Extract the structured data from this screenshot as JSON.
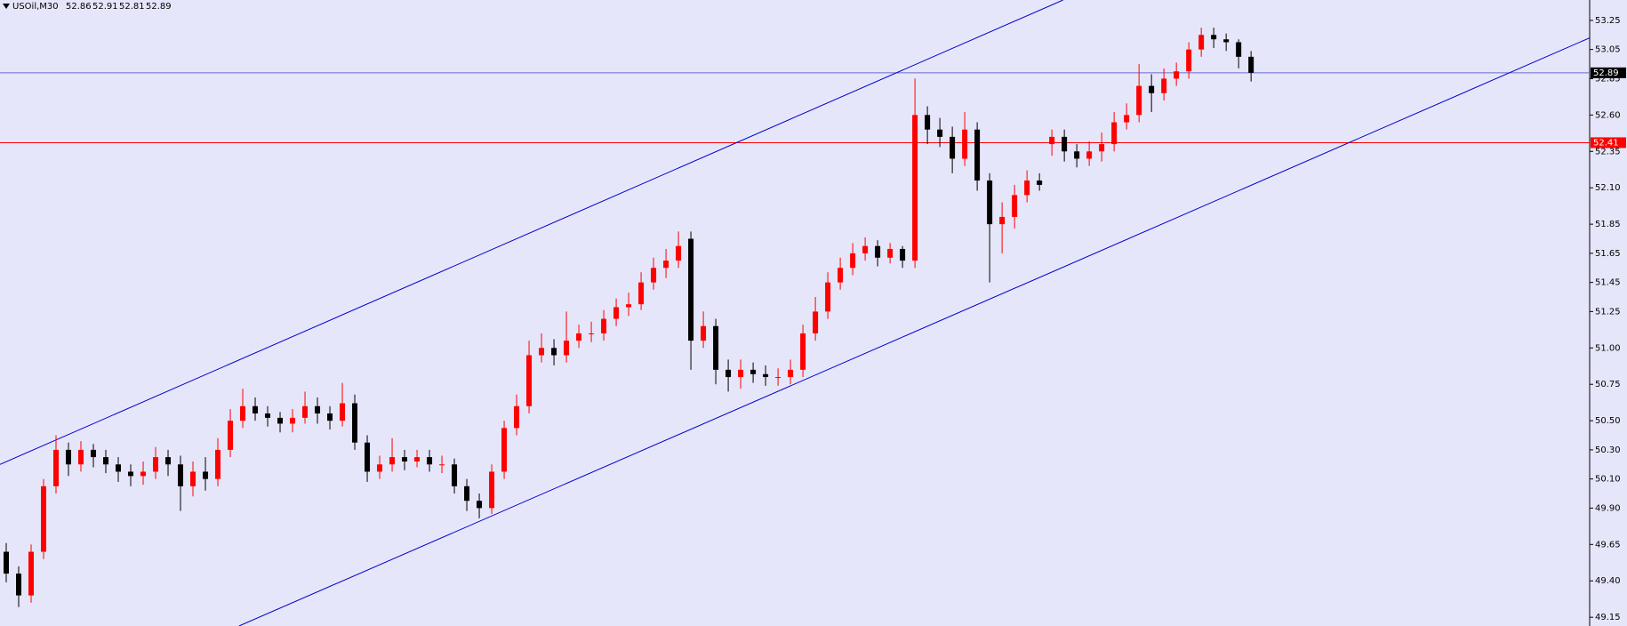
{
  "chart_data": {
    "type": "candlestick",
    "symbol": "USOil,M30",
    "ohlc": [
      52.86,
      52.91,
      52.81,
      52.89
    ],
    "ylim": [
      49.09,
      53.39
    ],
    "yticks": [
      53.25,
      53.05,
      52.85,
      {
        "value": 52.6,
        "label": "52.60"
      },
      52.35,
      {
        "value": 52.1,
        "label": "52.10"
      },
      51.85,
      51.65,
      51.45,
      51.25,
      {
        "value": 51.0,
        "label": "51.00"
      },
      50.75,
      {
        "value": 50.5,
        "label": "50.50"
      },
      {
        "value": 50.3,
        "label": "50.30"
      },
      {
        "value": 50.1,
        "label": "50.10"
      },
      {
        "value": 49.9,
        "label": "49.90"
      },
      49.65,
      {
        "value": 49.4,
        "label": "49.40"
      },
      49.15
    ],
    "xlim": [
      -0.5,
      127.2
    ],
    "up_color": "#ff0000",
    "down_color": "#000000",
    "open": [
      49.6,
      49.45,
      49.3,
      49.6,
      50.05,
      50.3,
      50.2,
      50.3,
      50.25,
      50.2,
      50.15,
      50.12,
      50.15,
      50.25,
      50.2,
      50.05,
      50.15,
      50.1,
      50.3,
      50.5,
      50.6,
      50.55,
      50.52,
      50.48,
      50.52,
      50.6,
      50.55,
      50.5,
      50.62,
      50.35,
      50.15,
      50.2,
      50.25,
      50.22,
      50.25,
      50.2,
      50.2,
      50.05,
      49.95,
      49.9,
      50.15,
      50.45,
      50.6,
      50.95,
      51.0,
      50.95,
      51.05,
      51.1,
      51.1,
      51.2,
      51.28,
      51.3,
      51.45,
      51.55,
      51.6,
      51.75,
      51.05,
      51.15,
      50.85,
      50.8,
      50.85,
      50.82,
      50.8,
      50.8,
      50.85,
      51.1,
      51.25,
      51.45,
      51.55,
      51.65,
      51.7,
      51.62,
      51.68,
      51.6,
      52.6,
      52.5,
      52.45,
      52.3,
      52.5,
      52.15,
      51.85,
      51.9,
      52.05,
      52.15,
      52.4,
      52.45,
      52.35,
      52.3,
      52.35,
      52.4,
      52.55,
      52.6,
      52.8,
      52.75,
      52.85,
      52.9,
      53.05,
      53.15,
      53.12,
      53.1,
      53.0
    ],
    "high": [
      49.66,
      49.5,
      49.65,
      50.1,
      50.4,
      50.35,
      50.36,
      50.34,
      50.3,
      50.25,
      50.2,
      50.22,
      50.32,
      50.3,
      50.26,
      50.22,
      50.25,
      50.38,
      50.58,
      50.72,
      50.66,
      50.6,
      50.56,
      50.58,
      50.7,
      50.66,
      50.6,
      50.76,
      50.68,
      50.4,
      50.26,
      50.38,
      50.3,
      50.3,
      50.3,
      50.26,
      50.24,
      50.1,
      50.0,
      50.2,
      50.5,
      50.68,
      51.05,
      51.1,
      51.06,
      51.25,
      51.16,
      51.18,
      51.26,
      51.34,
      51.38,
      51.52,
      51.62,
      51.68,
      51.8,
      51.8,
      51.25,
      51.2,
      50.92,
      50.92,
      50.9,
      50.88,
      50.86,
      50.92,
      51.16,
      51.35,
      51.52,
      51.62,
      51.72,
      51.76,
      51.74,
      51.72,
      51.7,
      52.85,
      52.66,
      52.58,
      52.52,
      52.62,
      52.55,
      52.2,
      52.0,
      52.12,
      52.22,
      52.2,
      52.5,
      52.5,
      52.4,
      52.42,
      52.48,
      52.62,
      52.68,
      52.95,
      52.88,
      52.92,
      52.96,
      53.1,
      53.2,
      53.2,
      53.16,
      53.12,
      53.04
    ],
    "low": [
      49.39,
      49.22,
      49.25,
      49.55,
      50.0,
      50.12,
      50.15,
      50.18,
      50.14,
      50.08,
      50.05,
      50.06,
      50.1,
      50.12,
      49.88,
      49.98,
      50.02,
      50.05,
      50.25,
      50.45,
      50.5,
      50.46,
      50.42,
      50.42,
      50.48,
      50.48,
      50.44,
      50.46,
      50.3,
      50.08,
      50.1,
      50.15,
      50.16,
      50.18,
      50.15,
      50.14,
      50.0,
      49.88,
      49.83,
      49.86,
      50.1,
      50.4,
      50.55,
      50.9,
      50.88,
      50.9,
      51.0,
      51.04,
      51.05,
      51.15,
      51.22,
      51.26,
      51.4,
      51.48,
      51.55,
      50.85,
      51.0,
      50.75,
      50.7,
      50.72,
      50.76,
      50.74,
      50.74,
      50.75,
      50.8,
      51.05,
      51.2,
      51.4,
      51.5,
      51.6,
      51.56,
      51.58,
      51.55,
      51.55,
      52.4,
      52.38,
      52.2,
      52.25,
      52.08,
      51.45,
      51.65,
      51.82,
      52.0,
      52.08,
      52.32,
      52.28,
      52.24,
      52.25,
      52.28,
      52.35,
      52.5,
      52.55,
      52.62,
      52.7,
      52.8,
      52.85,
      53.0,
      53.06,
      53.04,
      52.92,
      52.83
    ],
    "close": [
      49.45,
      49.3,
      49.6,
      50.05,
      50.3,
      50.2,
      50.3,
      50.25,
      50.2,
      50.15,
      50.12,
      50.15,
      50.25,
      50.2,
      50.05,
      50.15,
      50.1,
      50.3,
      50.5,
      50.6,
      50.55,
      50.52,
      50.48,
      50.52,
      50.6,
      50.55,
      50.5,
      50.62,
      50.35,
      50.15,
      50.2,
      50.25,
      50.22,
      50.25,
      50.2,
      50.2,
      50.05,
      49.95,
      49.9,
      50.15,
      50.45,
      50.6,
      50.95,
      51.0,
      50.95,
      51.05,
      51.1,
      51.1,
      51.2,
      51.28,
      51.3,
      51.45,
      51.55,
      51.6,
      51.7,
      51.05,
      51.15,
      50.85,
      50.8,
      50.85,
      50.82,
      50.8,
      50.8,
      50.85,
      51.1,
      51.25,
      51.45,
      51.55,
      51.65,
      51.7,
      51.62,
      51.68,
      51.6,
      52.6,
      52.5,
      52.45,
      52.3,
      52.5,
      52.15,
      51.85,
      51.9,
      52.05,
      52.15,
      52.12,
      52.45,
      52.35,
      52.3,
      52.35,
      52.4,
      52.55,
      52.6,
      52.8,
      52.75,
      52.85,
      52.9,
      53.05,
      53.15,
      53.12,
      53.1,
      53.0,
      52.89
    ],
    "trendlines": [
      {
        "color": "#0000cd",
        "x": [
          -0.5,
          84.9
        ],
        "y": [
          50.2,
          53.39
        ]
      },
      {
        "color": "#0000cd",
        "x": [
          18.7,
          127.2
        ],
        "y": [
          49.09,
          53.13
        ]
      }
    ],
    "hlines": [
      {
        "value": 52.89,
        "color": "#6a6acd",
        "label_color": "#000000"
      },
      {
        "value": 52.41,
        "color": "#ff0000",
        "label_color": "#ff0000"
      }
    ]
  }
}
